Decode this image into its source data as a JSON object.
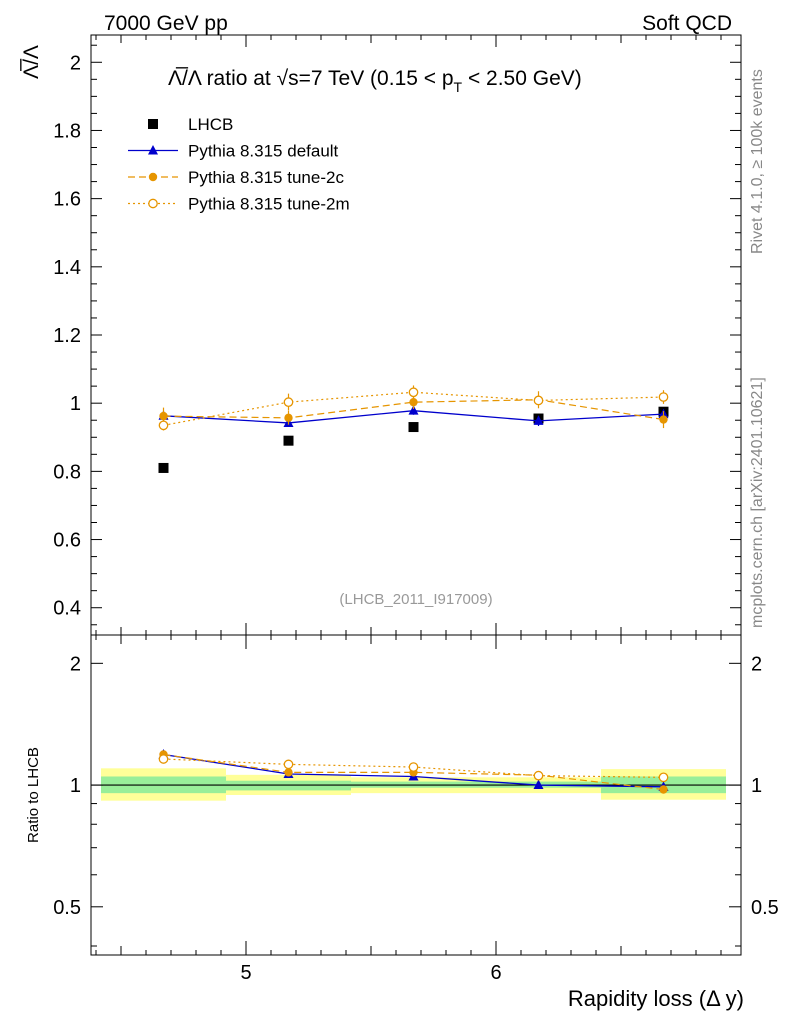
{
  "header": {
    "left": "7000 GeV pp",
    "right": "Soft QCD"
  },
  "side": {
    "rivet": "Rivet 4.1.0, ≥ 100k events",
    "mcplots": "mcplots.cern.ch [arXiv:2401.10621]"
  },
  "watermark": "(LHCB_2011_I917009)",
  "chart_data": [
    {
      "type": "scatter",
      "title": "Λ̅/Λ ratio at √s=7 TeV (0.15 < p_T < 2.50 GeV)",
      "title_parts": {
        "prefix": "Λ̅/Λ ratio at ",
        "sqrt": "√",
        "s_eq": "s=7 TeV (0.15 < p",
        "sub": "T",
        "suffix": " < 2.50 GeV)"
      },
      "ylabel": "Λ̅/Λ",
      "xlim": [
        4.38,
        6.98
      ],
      "ylim": [
        0.32,
        2.08
      ],
      "yticks": [
        "0.4",
        "0.6",
        "0.8",
        "1",
        "1.2",
        "1.4",
        "1.6",
        "1.8",
        "2"
      ],
      "x": [
        4.67,
        5.17,
        5.67,
        6.17,
        6.67
      ],
      "series": [
        {
          "name": "LHCB",
          "style": "marker",
          "color": "#000000",
          "marker": "square",
          "values": [
            0.81,
            0.89,
            0.93,
            0.955,
            0.975
          ]
        },
        {
          "name": "Pythia 8.315 default",
          "style": "solid",
          "color": "#0000cc",
          "marker": "triangle",
          "values": [
            0.963,
            0.942,
            0.978,
            0.948,
            0.968
          ],
          "errors": [
            0.01,
            0.01,
            0.012,
            0.015,
            0.01
          ]
        },
        {
          "name": "Pythia 8.315 tune-2c",
          "style": "dashed",
          "color": "#e69500",
          "marker": "circle",
          "values": [
            0.962,
            0.957,
            1.003,
            1.01,
            0.952
          ],
          "errors": [
            0.025,
            0.02,
            0.02,
            0.025,
            0.025
          ]
        },
        {
          "name": "Pythia 8.315 tune-2m",
          "style": "dotted",
          "color": "#e69500",
          "marker": "open-circle",
          "values": [
            0.935,
            1.003,
            1.032,
            1.008,
            1.018
          ],
          "errors": [
            0.015,
            0.025,
            0.02,
            0.015,
            0.02
          ]
        }
      ]
    },
    {
      "type": "line",
      "title": "",
      "ylabel": "Ratio to LHCB",
      "xlabel": "Rapidity loss (Δ y)",
      "xlim": [
        4.38,
        6.98
      ],
      "ylim": [
        0.38,
        2.35
      ],
      "yscale": "log",
      "yticks": [
        "0.5",
        "1",
        "2"
      ],
      "xticks": [
        "5",
        "6"
      ],
      "x": [
        4.67,
        5.17,
        5.67,
        6.17,
        6.67
      ],
      "bins": [
        [
          4.42,
          4.92
        ],
        [
          4.92,
          5.42
        ],
        [
          5.42,
          5.92
        ],
        [
          5.92,
          6.42
        ],
        [
          6.42,
          6.92
        ]
      ],
      "band_inner": [
        [
          0.955,
          1.05
        ],
        [
          0.97,
          1.025
        ],
        [
          0.985,
          1.02
        ],
        [
          0.985,
          1.02
        ],
        [
          0.955,
          1.05
        ]
      ],
      "band_outer": [
        [
          0.915,
          1.1
        ],
        [
          0.945,
          1.06
        ],
        [
          0.955,
          1.045
        ],
        [
          0.955,
          1.045
        ],
        [
          0.92,
          1.095
        ]
      ],
      "series": [
        {
          "name": "Pythia 8.315 default",
          "style": "solid",
          "color": "#0000cc",
          "marker": "triangle",
          "values": [
            1.19,
            1.065,
            1.05,
            1.0,
            0.99
          ]
        },
        {
          "name": "Pythia 8.315 tune-2c",
          "style": "dashed",
          "color": "#e69500",
          "marker": "circle",
          "values": [
            1.19,
            1.075,
            1.075,
            1.058,
            0.975
          ]
        },
        {
          "name": "Pythia 8.315 tune-2m",
          "style": "dotted",
          "color": "#e69500",
          "marker": "open-circle",
          "values": [
            1.16,
            1.125,
            1.108,
            1.055,
            1.045
          ]
        }
      ]
    }
  ]
}
